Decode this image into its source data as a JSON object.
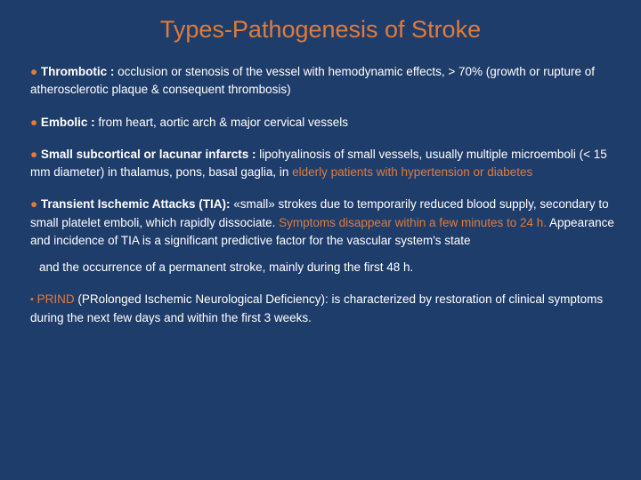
{
  "colors": {
    "background": "#1f3d6b",
    "title": "#e07b3a",
    "bullet": "#e07b3a",
    "text": "#ffffff",
    "highlight": "#e07b3a"
  },
  "title": "Types-Pathogenesis of Stroke",
  "items": [
    {
      "bullet": "●",
      "bold_lead": " Thrombotic : ",
      "body_pre": "occlusion or stenosis of the vessel with hemodynamic effects, > 70% (growth or rupture of atherosclerotic plaque & consequent thrombosis)",
      "highlight": "",
      "body_post": ""
    },
    {
      "bullet": "●",
      "bold_lead": " Embolic : ",
      "body_pre": "from heart, aortic arch & major cervical vessels",
      "highlight": "",
      "body_post": ""
    },
    {
      "bullet": "●",
      "bold_lead": " Small subcortical or lacunar infarcts : ",
      "body_pre": "lipohyalinosis of small vessels, usually multiple microemboli (< 15 mm diameter) in thalamus, pons, basal gaglia, in ",
      "highlight": "elderly patients with hypertension or diabetes",
      "body_post": ""
    },
    {
      "bullet": "●",
      "bold_lead": " Transient Ischemic Attacks (TIA): ",
      "body_pre": "«small» strokes due to temporarily reduced blood supply, secondary to small platelet emboli, which rapidly dissociate. ",
      "highlight": "Symptoms disappear within a few minutes to 24 h.",
      "body_post": " Appearance and incidence of TIA is a  significant predictive factor for the vascular system's state"
    }
  ],
  "continuation": "and the occurrence of a permanent  stroke, mainly during the first 48 h.",
  "prind": {
    "bullet": "•",
    "lead": " PRIND ",
    "body": "(PRolonged Ischemic Neurological Deficiency): is characterized by restoration of clinical symptoms during the next few days and within the first 3 weeks."
  },
  "typography": {
    "title_fontsize": 27,
    "body_fontsize": 13.5,
    "line_height": 1.5
  }
}
